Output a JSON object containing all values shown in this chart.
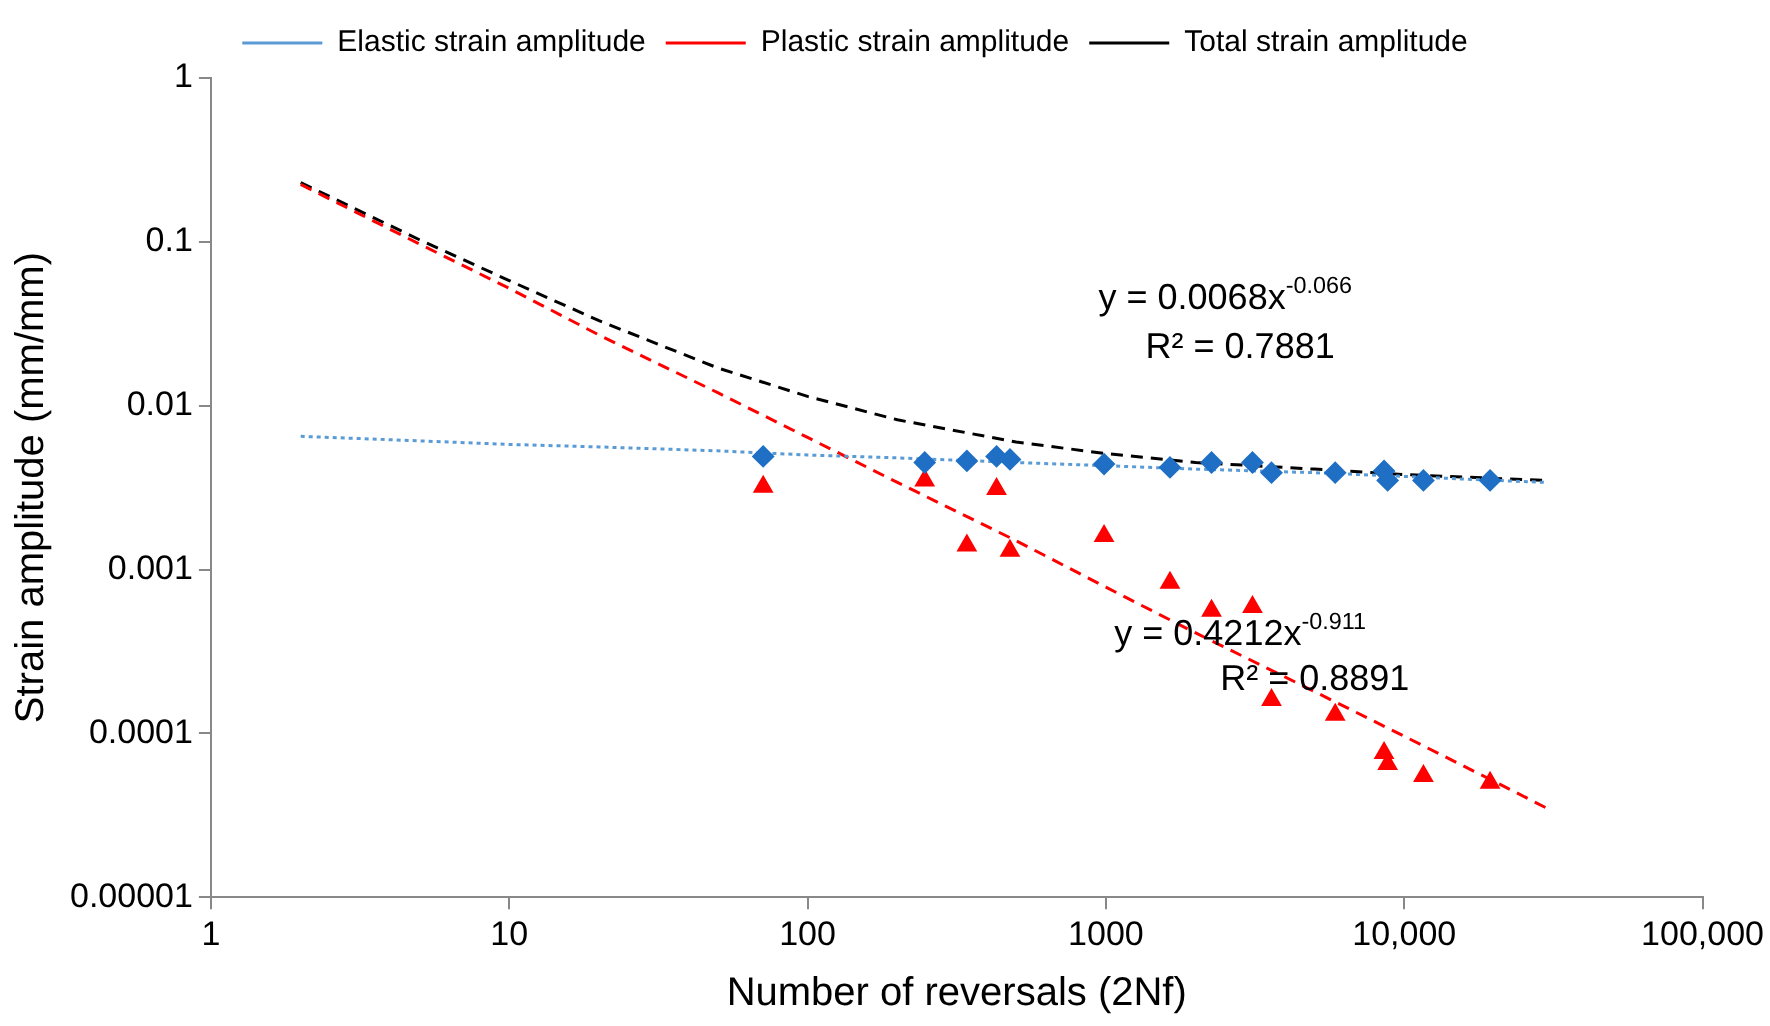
{
  "chart_data": {
    "type": "scatter",
    "xlabel": "Number of reversals (2Nf)",
    "ylabel": "Strain amplitude (mm/mm)",
    "log": "xy",
    "grid": false,
    "legend": "top",
    "xlim": [
      1,
      100000
    ],
    "xticks": [
      1,
      10,
      100,
      1000,
      {
        "value": 10000,
        "label": "10,000"
      },
      {
        "value": 100000,
        "label": "100,000"
      }
    ],
    "ylim": [
      1e-05,
      1
    ],
    "yticks": [
      {
        "value": 1e-05,
        "label": "0.00001"
      },
      0.0001,
      0.001,
      0.01,
      0.1,
      1
    ],
    "series": [
      {
        "type": "scatter",
        "marker": "diamond",
        "color": "#1f6fc5",
        "x": [
          71,
          247,
          342,
          430,
          477,
          986,
          1640,
          2260,
          3100,
          3590,
          5870,
          8560,
          8800,
          11600,
          19400
        ],
        "values": [
          0.0049,
          0.0045,
          0.0046,
          0.0049,
          0.0047,
          0.0044,
          0.0042,
          0.0045,
          0.0045,
          0.0039,
          0.0039,
          0.004,
          0.0035,
          0.0035,
          0.0035
        ]
      },
      {
        "type": "scatter",
        "marker": "triangle",
        "color": "#ff0000",
        "x": [
          71,
          247,
          342,
          430,
          477,
          986,
          1640,
          2260,
          3100,
          3590,
          5870,
          8560,
          8800,
          11600,
          19400
        ],
        "values": [
          0.0032,
          0.0035,
          0.0014,
          0.0031,
          0.0013,
          0.0016,
          0.00083,
          0.00056,
          0.00059,
          0.00016,
          0.00013,
          7.6e-05,
          6.5e-05,
          5.5e-05,
          5e-05
        ]
      },
      {
        "type": "line",
        "name": "Elastic strain amplitude",
        "color": "#5b9bd5",
        "line_style": "dotted",
        "marker": "none",
        "x": [
          2,
          5,
          10,
          20,
          50,
          100,
          200,
          500,
          1000,
          2000,
          5000,
          10000,
          20000,
          30000
        ],
        "values": [
          0.0065,
          0.0061,
          0.0058,
          0.0056,
          0.0053,
          0.005,
          0.0048,
          0.0045,
          0.0043,
          0.0041,
          0.0039,
          0.0037,
          0.0035,
          0.0034
        ]
      },
      {
        "type": "line",
        "name": "Plastic strain amplitude",
        "color": "#ff0000",
        "line_style": "dashed",
        "marker": "none",
        "x": [
          2,
          5,
          10,
          20,
          50,
          100,
          200,
          500,
          1000,
          2000,
          5000,
          10000,
          20000,
          30000
        ],
        "values": [
          0.224,
          0.097,
          0.052,
          0.027,
          0.012,
          0.0064,
          0.0034,
          0.0015,
          0.00078,
          0.00041,
          0.00018,
          9.6e-05,
          5.1e-05,
          3.5e-05
        ]
      },
      {
        "type": "line",
        "name": "Total strain amplitude",
        "color": "#000000",
        "line_style": "dashed",
        "marker": "none",
        "x": [
          2,
          5,
          10,
          20,
          50,
          100,
          200,
          500,
          1000,
          2000,
          5000,
          10000,
          20000,
          30000
        ],
        "values": [
          0.23,
          0.103,
          0.058,
          0.033,
          0.017,
          0.0114,
          0.0082,
          0.006,
          0.0051,
          0.0045,
          0.0041,
          0.0038,
          0.0036,
          0.0035
        ]
      }
    ],
    "annotations": [
      "y = 0.0068x$^{-0.066}$",
      "R² = 0.7881",
      "y = 0.4212x$^{-0.911}$",
      "R² = 0.8891"
    ]
  }
}
